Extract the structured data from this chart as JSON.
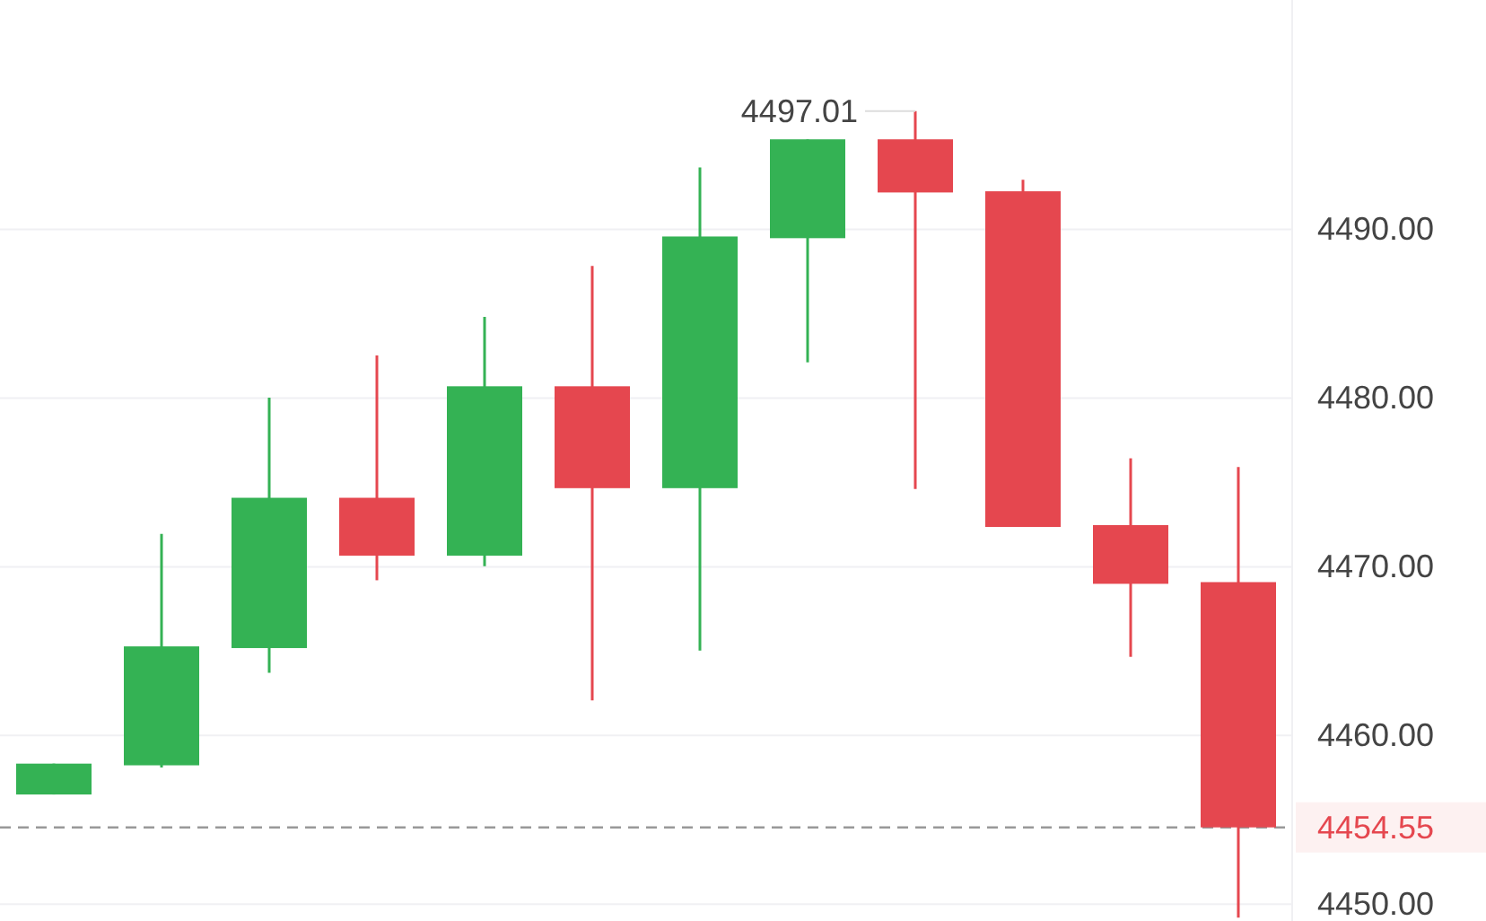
{
  "chart_data": {
    "type": "candlestick",
    "categories": [
      null,
      null,
      null,
      null,
      null,
      null,
      null,
      null,
      null,
      null,
      null,
      null
    ],
    "ohlc": [
      [
        4456.5,
        4458.33,
        4456.5,
        4458.33
      ],
      [
        4458.23,
        4471.95,
        4458.1,
        4465.28
      ],
      [
        4465.18,
        4480.03,
        4463.72,
        4474.09
      ],
      [
        4474.09,
        4482.53,
        4469.2,
        4470.66
      ],
      [
        4470.66,
        4484.82,
        4470.03,
        4480.7
      ],
      [
        4480.7,
        4487.84,
        4462.08,
        4474.66
      ],
      [
        4474.66,
        4493.68,
        4465.03,
        4489.58
      ],
      [
        4489.48,
        4495.34,
        4482.12,
        4495.34
      ],
      [
        4495.34,
        4497.01,
        4474.61,
        4492.19
      ],
      [
        4492.26,
        4492.95,
        4472.36,
        4472.36
      ],
      [
        4472.47,
        4476.43,
        4464.66,
        4468.99
      ],
      [
        4469.09,
        4475.91,
        4449.2,
        4454.55
      ]
    ],
    "colors": [
      "#34b254",
      "#34b254",
      "#34b254",
      "#e5474f",
      "#34b254",
      "#e5474f",
      "#34b254",
      "#34b254",
      "#e5474f",
      "#e5474f",
      "#e5474f",
      "#e5474f"
    ],
    "ylim": [
      4449,
      4503.6
    ],
    "yticks": [
      {
        "value": 4450,
        "label": "4450.00"
      },
      {
        "value": 4460,
        "label": "4460.00"
      },
      {
        "value": 4470,
        "label": "4470.00"
      },
      {
        "value": 4480,
        "label": "4480.00"
      },
      {
        "value": 4490,
        "label": "4490.00"
      }
    ],
    "grid": "y",
    "ref_lines": [
      {
        "axis": "y",
        "value": 4454.55,
        "label": "4454.55",
        "line_style": "dashed"
      }
    ],
    "annotations": [
      "4497.01"
    ]
  }
}
